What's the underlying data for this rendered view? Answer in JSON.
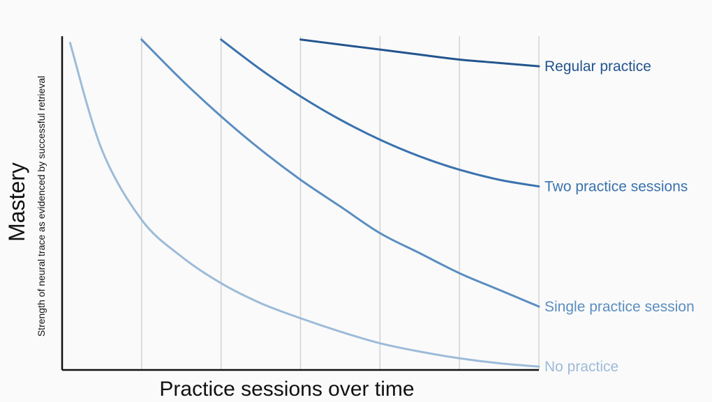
{
  "chart_data": {
    "type": "line",
    "title": "",
    "xlabel": "Practice sessions over time",
    "ylabel": "Mastery",
    "ylabel_secondary": "Strength of neural trace as evidenced by successful retrieval",
    "xlim": [
      0,
      6
    ],
    "ylim": [
      0,
      1
    ],
    "x_ticks_labels_shown": false,
    "y_ticks_labels_shown": false,
    "vertical_gridlines_at": [
      1,
      2,
      3,
      4,
      5,
      6
    ],
    "legend": "inline-right",
    "series": [
      {
        "name": "No practice",
        "color": "#9dbbd9",
        "points": [
          [
            0.1,
            0.98
          ],
          [
            0.5,
            0.66
          ],
          [
            1,
            0.45
          ],
          [
            1.5,
            0.34
          ],
          [
            2,
            0.26
          ],
          [
            2.5,
            0.2
          ],
          [
            3,
            0.155
          ],
          [
            3.5,
            0.115
          ],
          [
            4,
            0.08
          ],
          [
            4.5,
            0.055
          ],
          [
            5,
            0.035
          ],
          [
            5.5,
            0.02
          ],
          [
            6,
            0.01
          ]
        ]
      },
      {
        "name": "Single practice session",
        "color": "#5b8ec0",
        "points": [
          [
            1,
            0.99
          ],
          [
            1.5,
            0.87
          ],
          [
            2,
            0.76
          ],
          [
            2.5,
            0.66
          ],
          [
            3,
            0.57
          ],
          [
            3.5,
            0.49
          ],
          [
            4,
            0.41
          ],
          [
            4.5,
            0.35
          ],
          [
            5,
            0.29
          ],
          [
            5.5,
            0.24
          ],
          [
            6,
            0.19
          ]
        ]
      },
      {
        "name": "Two practice sessions",
        "color": "#3a72ad",
        "points": [
          [
            2,
            0.99
          ],
          [
            2.5,
            0.9
          ],
          [
            3,
            0.82
          ],
          [
            3.5,
            0.75
          ],
          [
            4,
            0.69
          ],
          [
            4.5,
            0.64
          ],
          [
            5,
            0.6
          ],
          [
            5.5,
            0.57
          ],
          [
            6,
            0.55
          ]
        ]
      },
      {
        "name": "Regular practice",
        "color": "#22548e",
        "points": [
          [
            3,
            0.99
          ],
          [
            3.5,
            0.975
          ],
          [
            4,
            0.96
          ],
          [
            4.5,
            0.945
          ],
          [
            5,
            0.93
          ],
          [
            5.5,
            0.92
          ],
          [
            6,
            0.91
          ]
        ]
      }
    ]
  }
}
